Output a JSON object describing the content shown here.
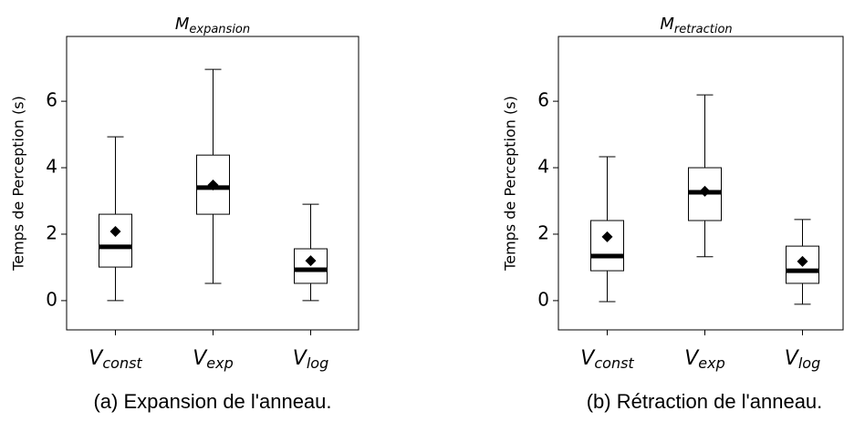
{
  "chart_data": [
    {
      "type": "box",
      "title": {
        "base": "M",
        "sub": "expansion"
      },
      "ylabel": "Temps de Perception (s)",
      "caption": "(a) Expansion de l'anneau.",
      "categories": [
        {
          "base": "V",
          "sub": "const"
        },
        {
          "base": "V",
          "sub": "exp"
        },
        {
          "base": "V",
          "sub": "log"
        }
      ],
      "boxes": [
        {
          "whisker_low": 0,
          "q1": 1.01,
          "median": 1.62,
          "q3": 2.6,
          "whisker_high": 4.93,
          "mean": 2.08
        },
        {
          "whisker_low": 0.52,
          "q1": 2.6,
          "median": 3.4,
          "q3": 4.38,
          "whisker_high": 6.96,
          "mean": 3.48
        },
        {
          "whisker_low": 0,
          "q1": 0.52,
          "median": 0.93,
          "q3": 1.56,
          "whisker_high": 2.9,
          "mean": 1.2
        }
      ],
      "color": "#000000",
      "ylim": [
        -0.88,
        7.95
      ],
      "yticks": [
        0,
        2,
        4,
        6
      ]
    },
    {
      "type": "box",
      "title": {
        "base": "M",
        "sub": "retraction"
      },
      "ylabel": "Temps de Perception (s)",
      "caption": "(b) Rétraction de l'anneau.",
      "categories": [
        {
          "base": "V",
          "sub": "const"
        },
        {
          "base": "V",
          "sub": "exp"
        },
        {
          "base": "V",
          "sub": "log"
        }
      ],
      "boxes": [
        {
          "whisker_low": -0.03,
          "q1": 0.9,
          "median": 1.34,
          "q3": 2.41,
          "whisker_high": 4.33,
          "mean": 1.92
        },
        {
          "whisker_low": 1.32,
          "q1": 2.41,
          "median": 3.26,
          "q3": 4.0,
          "whisker_high": 6.19,
          "mean": 3.29
        },
        {
          "whisker_low": -0.11,
          "q1": 0.52,
          "median": 0.9,
          "q3": 1.64,
          "whisker_high": 2.44,
          "mean": 1.18
        }
      ],
      "color": "#000000",
      "ylim": [
        -0.88,
        7.95
      ],
      "yticks": [
        0,
        2,
        4,
        6
      ]
    }
  ]
}
